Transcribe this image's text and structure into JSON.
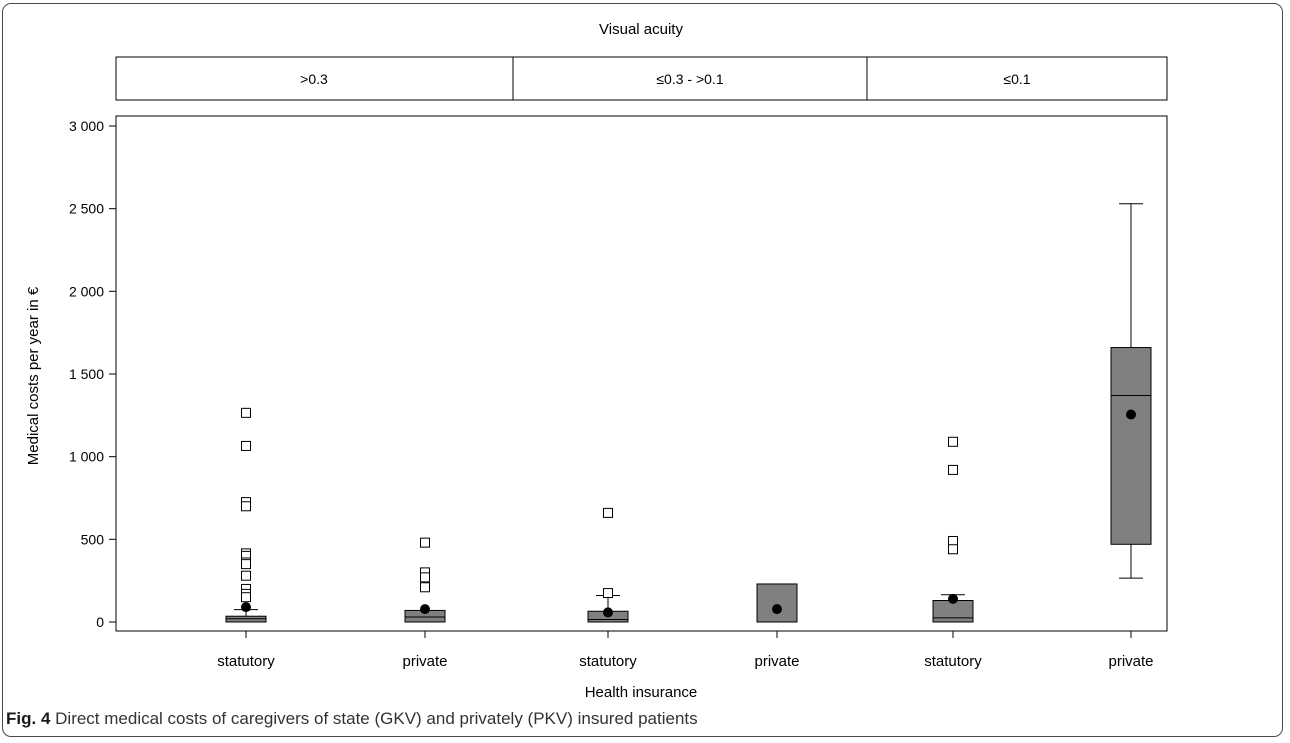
{
  "caption": {
    "label": "Fig. 4",
    "text": "Direct medical costs of caregivers of state (GKV) and privately (PKV) insured patients"
  },
  "chart_data": {
    "type": "boxplot",
    "facet_title": "Visual acuity",
    "panels": [
      ">0.3",
      "≤0.3 - >0.1",
      "≤0.1"
    ],
    "xlabel": "Health insurance",
    "ylabel": "Medical costs per year in €",
    "ylim": [
      0,
      3000
    ],
    "yticks": [
      0,
      500,
      1000,
      1500,
      2000,
      2500,
      3000
    ],
    "ytick_labels": [
      "0",
      "500",
      "1 000",
      "1 500",
      "2 000",
      "2 500",
      "3 000"
    ],
    "box_color": "#808080",
    "groups": [
      {
        "panel": ">0.3",
        "label": "statutory",
        "q1": 0,
        "median": 20,
        "q3": 35,
        "whisker_low": 0,
        "whisker_high": 75,
        "mean": 90,
        "outliers": [
          1265,
          1065,
          725,
          700,
          415,
          400,
          360,
          350,
          280,
          200,
          170,
          150
        ]
      },
      {
        "panel": ">0.3",
        "label": "private",
        "q1": 0,
        "median": 30,
        "q3": 70,
        "whisker_low": 0,
        "whisker_high": 70,
        "mean": 78,
        "outliers": [
          480,
          300,
          270,
          210
        ]
      },
      {
        "panel": "≤0.3 - >0.1",
        "label": "statutory",
        "q1": 0,
        "median": 15,
        "q3": 65,
        "whisker_low": 0,
        "whisker_high": 160,
        "mean": 58,
        "outliers": [
          660,
          175
        ]
      },
      {
        "panel": "≤0.3 - >0.1",
        "label": "private",
        "q1": 0,
        "median": 0,
        "q3": 230,
        "whisker_low": 0,
        "whisker_high": 230,
        "mean": 78,
        "outliers": []
      },
      {
        "panel": "≤0.1",
        "label": "statutory",
        "q1": 0,
        "median": 25,
        "q3": 130,
        "whisker_low": 0,
        "whisker_high": 165,
        "mean": 140,
        "outliers": [
          1090,
          920,
          490,
          440
        ]
      },
      {
        "panel": "≤0.1",
        "label": "private",
        "q1": 470,
        "median": 1370,
        "q3": 1660,
        "whisker_low": 265,
        "whisker_high": 2530,
        "mean": 1255,
        "outliers": []
      }
    ]
  }
}
